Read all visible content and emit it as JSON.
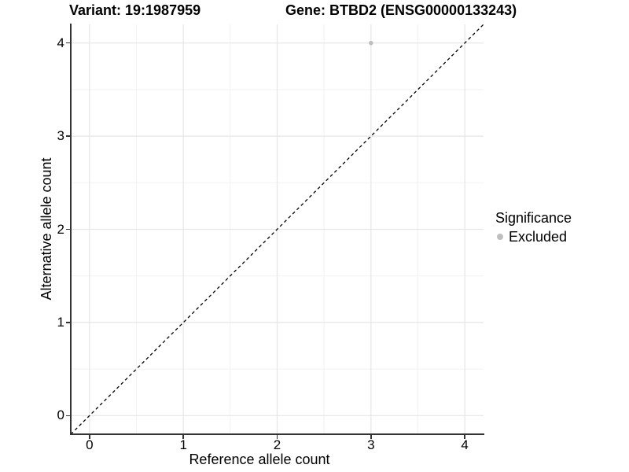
{
  "header": {
    "variant_label": "Variant: 19:1987959",
    "gene_label": "Gene: BTBD2 (ENSG00000133243)"
  },
  "chart_data": {
    "type": "scatter",
    "xlabel": "Reference allele count",
    "ylabel": "Alternative allele count",
    "xlim": [
      -0.2,
      4.2
    ],
    "ylim": [
      -0.2,
      4.2
    ],
    "x_ticks": [
      0,
      1,
      2,
      3,
      4
    ],
    "y_ticks": [
      0,
      1,
      2,
      3,
      4
    ],
    "grid": "major and minor gridlines on, white panel",
    "points": [
      {
        "x": 3,
        "y": 4,
        "significance": "Excluded",
        "color": "#bfbfbf"
      }
    ],
    "reference_line": {
      "slope": 1,
      "intercept": 0,
      "style": "dashed",
      "color": "#000000"
    },
    "legend": {
      "title": "Significance",
      "position": "right",
      "entries": [
        {
          "label": "Excluded",
          "color": "#bfbfbf"
        }
      ]
    }
  },
  "colors": {
    "background": "#ffffff",
    "axis": "#333333",
    "grid_major": "#e6e6e6",
    "grid_minor": "#f2f2f2",
    "text": "#000000",
    "excluded_point": "#bfbfbf"
  }
}
